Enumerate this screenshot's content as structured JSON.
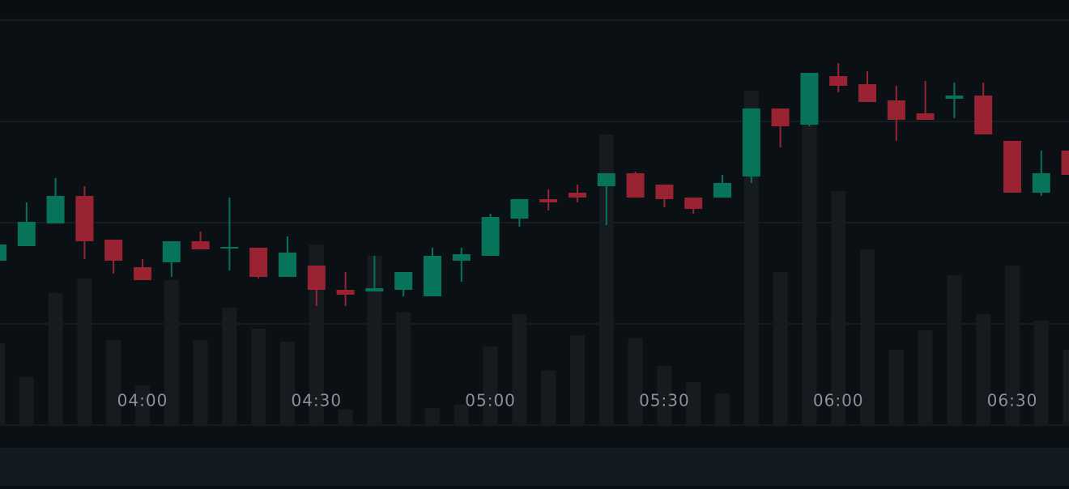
{
  "chart_data": {
    "type": "candlestick",
    "categories": [
      null,
      null,
      null,
      null,
      null,
      "04:00",
      null,
      null,
      null,
      null,
      null,
      "04:30",
      null,
      null,
      null,
      null,
      null,
      "05:00",
      null,
      null,
      null,
      null,
      null,
      "05:30",
      null,
      null,
      null,
      null,
      null,
      "06:00",
      null,
      null,
      null,
      null,
      null,
      "06:30",
      null,
      null
    ],
    "open": [
      40.6,
      44.2,
      49.8,
      56.6,
      45.8,
      39,
      40.2,
      45.4,
      43.6,
      43.8,
      36.6,
      39.4,
      33.4,
      33,
      33.4,
      31.8,
      40.6,
      41.8,
      51,
      55.8,
      57.4,
      59,
      62.2,
      59.4,
      56.2,
      56.2,
      61.4,
      78.2,
      74.2,
      86.2,
      84.2,
      80.2,
      77,
      80.6,
      81.4,
      70.2,
      57.4,
      67.8
    ],
    "high": [
      45,
      55,
      61,
      59,
      45.8,
      41,
      45.4,
      47.8,
      56.2,
      43.8,
      46.6,
      39.4,
      37.8,
      41.8,
      37.8,
      43.8,
      43.8,
      52.2,
      55.8,
      58.2,
      59.4,
      62.2,
      62.6,
      59.4,
      56.2,
      61.8,
      78.2,
      78.2,
      87,
      89.4,
      87.4,
      83.8,
      85,
      84.6,
      84.6,
      70.2,
      67.8,
      67.8
    ],
    "low": [
      40.6,
      44.2,
      49.8,
      41,
      37.4,
      35.8,
      36.6,
      43.4,
      38.2,
      36.2,
      36.6,
      29.4,
      29.4,
      33,
      31.8,
      31.8,
      35.4,
      41.8,
      49,
      53,
      55,
      49.4,
      56.2,
      53.8,
      52.2,
      56.2,
      59.8,
      68.6,
      73.8,
      82.2,
      79.8,
      70.2,
      75.4,
      75.8,
      71.8,
      57.4,
      56.6,
      61.8
    ],
    "close": [
      44.6,
      50.2,
      56.6,
      45.4,
      40.6,
      35.8,
      45.4,
      43.4,
      44,
      36.6,
      42.6,
      33.4,
      32.2,
      33.8,
      37.8,
      41.8,
      42.2,
      51.4,
      55.8,
      55,
      56.2,
      62.2,
      56.2,
      55.8,
      53.4,
      59.8,
      78.2,
      73.8,
      87,
      83.8,
      79.8,
      75.4,
      75.4,
      81.4,
      71.8,
      57.4,
      62.2,
      61.8
    ],
    "volume": [
      20.2,
      11.8,
      32.6,
      36.2,
      21,
      9.8,
      35.8,
      21,
      29,
      23.8,
      20.6,
      44.6,
      3.8,
      41.8,
      27.8,
      4.2,
      5,
      19.4,
      27.4,
      13.4,
      22.2,
      71.8,
      21.4,
      14.6,
      10.6,
      7.8,
      82.6,
      37.8,
      75,
      57.8,
      43.4,
      18.6,
      23.4,
      37,
      27.4,
      39.4,
      25.8,
      18.6
    ],
    "up_color": "#06735a",
    "down_color": "#9a2333",
    "volume_color": "#161b20",
    "ylim": [
      0,
      105
    ],
    "gridlines": [
      25,
      50,
      75,
      100
    ],
    "grid": true
  }
}
